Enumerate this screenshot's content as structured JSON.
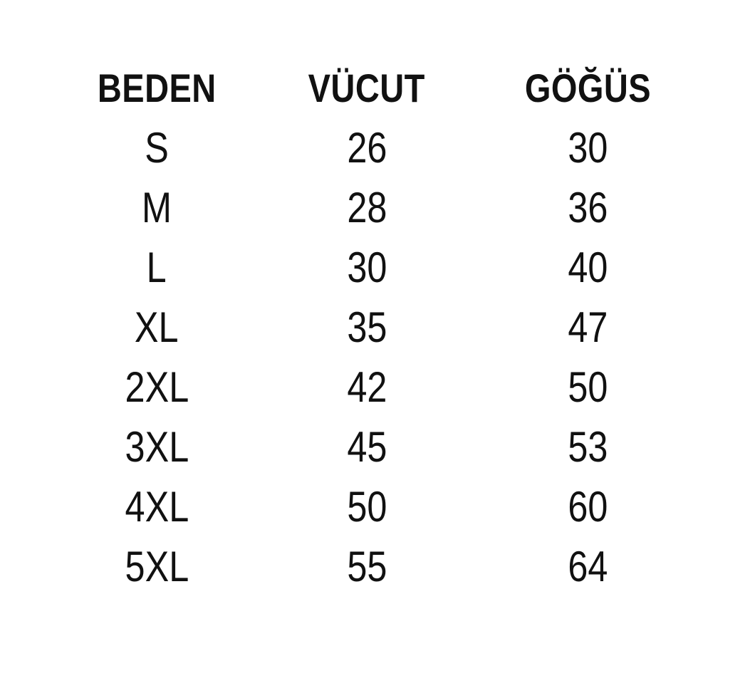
{
  "colors": {
    "background": "#ffffff",
    "text": "#111111"
  },
  "table": {
    "headers": {
      "size": "BEDEN",
      "body": "VÜCUT",
      "chest": "GÖĞÜS"
    },
    "rows": [
      {
        "size": "S",
        "body": "26",
        "chest": "30"
      },
      {
        "size": "M",
        "body": "28",
        "chest": "36"
      },
      {
        "size": "L",
        "body": "30",
        "chest": "40"
      },
      {
        "size": "XL",
        "body": "35",
        "chest": "47"
      },
      {
        "size": "2XL",
        "body": "42",
        "chest": "50"
      },
      {
        "size": "3XL",
        "body": "45",
        "chest": "53"
      },
      {
        "size": "4XL",
        "body": "50",
        "chest": "60"
      },
      {
        "size": "5XL",
        "body": "55",
        "chest": "64"
      }
    ]
  },
  "chart_data": {
    "type": "table",
    "title": "",
    "columns": [
      "BEDEN",
      "VÜCUT",
      "GÖĞÜS"
    ],
    "rows": [
      [
        "S",
        26,
        30
      ],
      [
        "M",
        28,
        36
      ],
      [
        "L",
        30,
        40
      ],
      [
        "XL",
        35,
        47
      ],
      [
        "2XL",
        42,
        50
      ],
      [
        "3XL",
        45,
        53
      ],
      [
        "4XL",
        50,
        60
      ],
      [
        "5XL",
        55,
        64
      ]
    ],
    "layout": {
      "grid": false,
      "borders": false,
      "alignment": "center",
      "header_style": "bold"
    }
  }
}
